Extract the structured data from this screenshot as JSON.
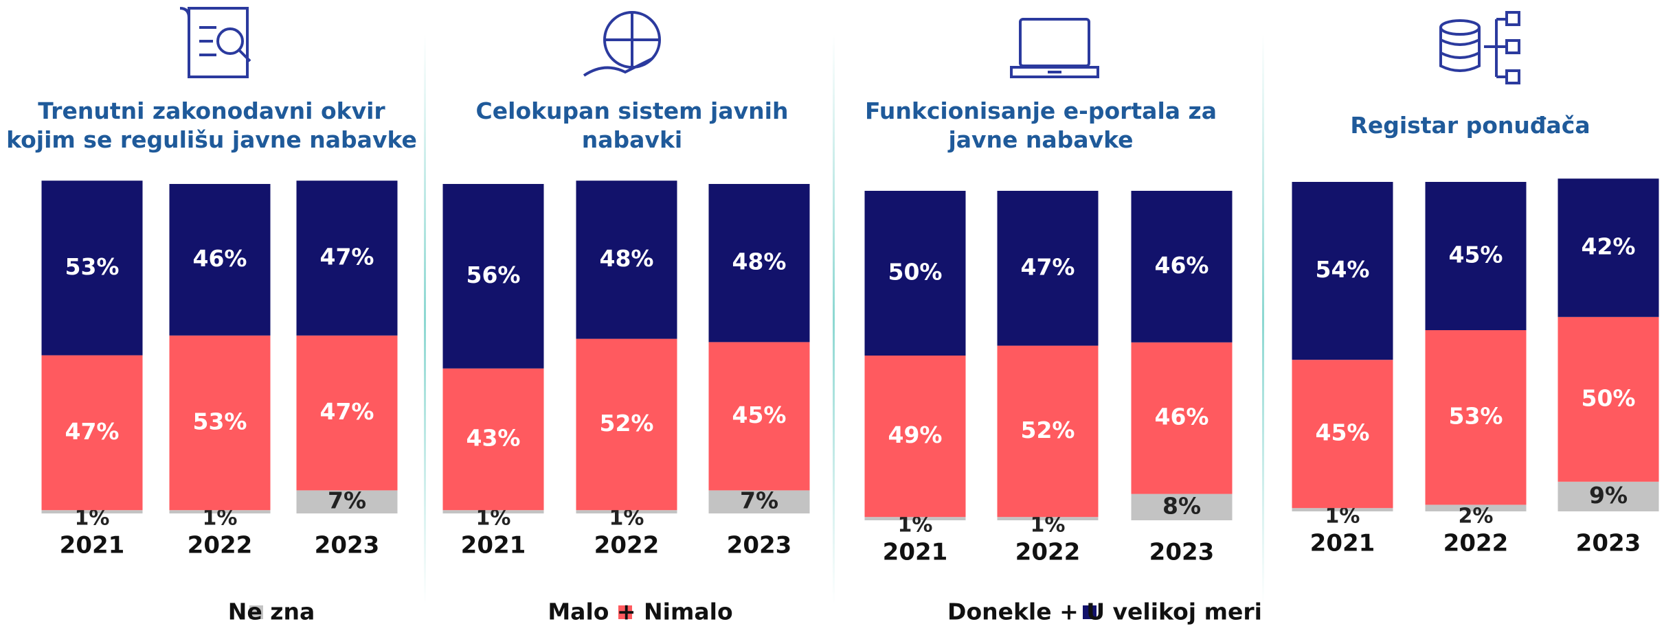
{
  "chart_data": [
    {
      "type": "bar",
      "title": "Trenutni zakonodavni okvir kojim se regulišu javne nabavke",
      "categories": [
        "2021",
        "2022",
        "2023"
      ],
      "series": [
        {
          "name": "Ne zna",
          "color": "#c3c3c3",
          "values": [
            1,
            1,
            7
          ],
          "value_labels": [
            "1%",
            "1%",
            "7%"
          ]
        },
        {
          "name": "Malo + Nimalo",
          "color": "#ff5a5f",
          "values": [
            47,
            53,
            47
          ],
          "value_labels": [
            "47%",
            "53%",
            "47%"
          ]
        },
        {
          "name": "Donekle + U velikoj meri",
          "color": "#12126b",
          "values": [
            53,
            46,
            47
          ],
          "value_labels": [
            "53%",
            "46%",
            "47%"
          ]
        }
      ]
    },
    {
      "type": "bar",
      "title": "Celokupan sistem javnih nabavki",
      "categories": [
        "2021",
        "2022",
        "2023"
      ],
      "series": [
        {
          "name": "Ne zna",
          "color": "#c3c3c3",
          "values": [
            1,
            1,
            7
          ],
          "value_labels": [
            "1%",
            "1%",
            "7%"
          ]
        },
        {
          "name": "Malo + Nimalo",
          "color": "#ff5a5f",
          "values": [
            43,
            52,
            45
          ],
          "value_labels": [
            "43%",
            "52%",
            "45%"
          ]
        },
        {
          "name": "Donekle + U velikoj meri",
          "color": "#12126b",
          "values": [
            56,
            48,
            48
          ],
          "value_labels": [
            "56%",
            "48%",
            "48%"
          ]
        }
      ]
    },
    {
      "type": "bar",
      "title": "Funkcionisanje e-portala za javne nabavke",
      "categories": [
        "2021",
        "2022",
        "2023"
      ],
      "series": [
        {
          "name": "Ne zna",
          "color": "#c3c3c3",
          "values": [
            1,
            1,
            8
          ],
          "value_labels": [
            "1%",
            "1%",
            "8%"
          ]
        },
        {
          "name": "Malo + Nimalo",
          "color": "#ff5a5f",
          "values": [
            49,
            52,
            46
          ],
          "value_labels": [
            "49%",
            "52%",
            "46%"
          ]
        },
        {
          "name": "Donekle + U velikoj meri",
          "color": "#12126b",
          "values": [
            50,
            47,
            46
          ],
          "value_labels": [
            "50%",
            "47%",
            "46%"
          ]
        }
      ]
    },
    {
      "type": "bar",
      "title": "Registar ponuđača",
      "categories": [
        "2021",
        "2022",
        "2023"
      ],
      "series": [
        {
          "name": "Ne zna",
          "color": "#c3c3c3",
          "values": [
            1,
            2,
            9
          ],
          "value_labels": [
            "1%",
            "2%",
            "9%"
          ]
        },
        {
          "name": "Malo + Nimalo",
          "color": "#ff5a5f",
          "values": [
            45,
            53,
            50
          ],
          "value_labels": [
            "45%",
            "53%",
            "50%"
          ]
        },
        {
          "name": "Donekle + U velikoj meri",
          "color": "#12126b",
          "values": [
            54,
            45,
            42
          ],
          "value_labels": [
            "54%",
            "45%",
            "42%"
          ]
        }
      ]
    }
  ]
}
